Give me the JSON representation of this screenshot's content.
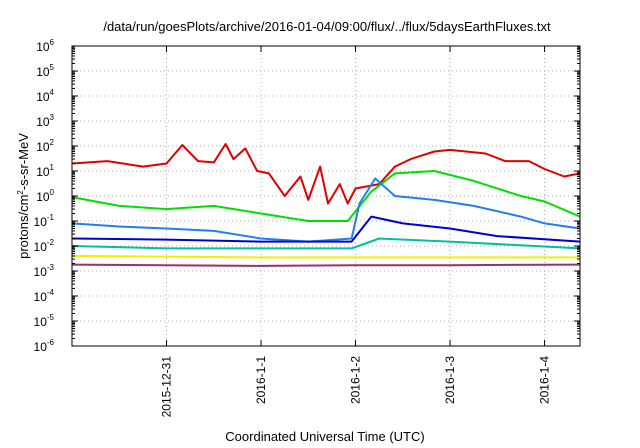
{
  "chart_data": {
    "type": "line",
    "title": "/data/run/goesPlots/archive/2016-01-04/09:00/flux/../flux/5daysEarthFluxes.txt",
    "xlabel": "Coordinated Universal Time (UTC)",
    "ylabel": "protons/cm²-s-sr-MeV",
    "ylabel_parts": {
      "pre": "protons/cm",
      "sup": "2",
      "post": "-s-sr-MeV"
    },
    "y_scale": "log",
    "ylim": [
      1e-06,
      1000000.0
    ],
    "y_ticks": [
      {
        "base": "10",
        "exp": "6",
        "value": 1000000.0
      },
      {
        "base": "10",
        "exp": "5",
        "value": 100000.0
      },
      {
        "base": "10",
        "exp": "4",
        "value": 10000.0
      },
      {
        "base": "10",
        "exp": "3",
        "value": 1000.0
      },
      {
        "base": "10",
        "exp": "2",
        "value": 100.0
      },
      {
        "base": "10",
        "exp": "1",
        "value": 10.0
      },
      {
        "base": "10",
        "exp": "0",
        "value": 1
      },
      {
        "base": "10",
        "exp": "-1",
        "value": 0.1
      },
      {
        "base": "10",
        "exp": "-2",
        "value": 0.01
      },
      {
        "base": "10",
        "exp": "-3",
        "value": 0.001
      },
      {
        "base": "10",
        "exp": "-4",
        "value": 0.0001
      },
      {
        "base": "10",
        "exp": "-5",
        "value": 1e-05
      },
      {
        "base": "10",
        "exp": "-6",
        "value": 1e-06
      }
    ],
    "xlim": [
      "2015-12-30 00:00",
      "2016-01-04 09:00"
    ],
    "x_ticks": [
      {
        "label": "2015-12-31",
        "value": "2015-12-31"
      },
      {
        "label": "2016-1-1",
        "value": "2016-01-01"
      },
      {
        "label": "2016-1-2",
        "value": "2016-01-02"
      },
      {
        "label": "2016-1-3",
        "value": "2016-01-03"
      },
      {
        "label": "2016-1-4",
        "value": "2016-01-04"
      }
    ],
    "grid": true,
    "series": [
      {
        "color": "#e00000",
        "points": [
          [
            "2015-12-30 00:00",
            20
          ],
          [
            "2015-12-30 09:00",
            25
          ],
          [
            "2015-12-30 18:00",
            15
          ],
          [
            "2015-12-31 00:00",
            20
          ],
          [
            "2015-12-31 04:00",
            110
          ],
          [
            "2015-12-31 08:00",
            25
          ],
          [
            "2015-12-31 12:00",
            22
          ],
          [
            "2015-12-31 15:00",
            120
          ],
          [
            "2015-12-31 17:00",
            30
          ],
          [
            "2015-12-31 20:00",
            80
          ],
          [
            "2015-12-31 23:00",
            10
          ],
          [
            "2016-01-01 02:00",
            8
          ],
          [
            "2016-01-01 06:00",
            1
          ],
          [
            "2016-01-01 10:00",
            6
          ],
          [
            "2016-01-01 12:00",
            0.7
          ],
          [
            "2016-01-01 15:00",
            15
          ],
          [
            "2016-01-01 17:00",
            0.5
          ],
          [
            "2016-01-01 20:00",
            3
          ],
          [
            "2016-01-01 22:00",
            0.5
          ],
          [
            "2016-01-02 00:00",
            2
          ],
          [
            "2016-01-02 06:00",
            3
          ],
          [
            "2016-01-02 10:00",
            15
          ],
          [
            "2016-01-02 14:00",
            30
          ],
          [
            "2016-01-02 20:00",
            60
          ],
          [
            "2016-01-03 00:00",
            70
          ],
          [
            "2016-01-03 09:00",
            50
          ],
          [
            "2016-01-03 14:00",
            25
          ],
          [
            "2016-01-03 20:00",
            25
          ],
          [
            "2016-01-04 00:00",
            12
          ],
          [
            "2016-01-04 05:00",
            6
          ],
          [
            "2016-01-04 09:00",
            8
          ]
        ]
      },
      {
        "color": "#00e000",
        "points": [
          [
            "2015-12-30 00:00",
            0.9
          ],
          [
            "2015-12-30 12:00",
            0.4
          ],
          [
            "2015-12-31 00:00",
            0.3
          ],
          [
            "2015-12-31 12:00",
            0.4
          ],
          [
            "2016-01-01 00:00",
            0.2
          ],
          [
            "2016-01-01 12:00",
            0.1
          ],
          [
            "2016-01-01 22:00",
            0.1
          ],
          [
            "2016-01-02 04:00",
            1.5
          ],
          [
            "2016-01-02 10:00",
            8
          ],
          [
            "2016-01-02 20:00",
            10
          ],
          [
            "2016-01-03 06:00",
            4
          ],
          [
            "2016-01-03 18:00",
            1
          ],
          [
            "2016-01-04 00:00",
            0.6
          ],
          [
            "2016-01-04 09:00",
            0.15
          ]
        ]
      },
      {
        "color": "#2080f0",
        "points": [
          [
            "2015-12-30 00:00",
            0.08
          ],
          [
            "2015-12-30 12:00",
            0.06
          ],
          [
            "2015-12-31 00:00",
            0.05
          ],
          [
            "2015-12-31 12:00",
            0.04
          ],
          [
            "2016-01-01 00:00",
            0.02
          ],
          [
            "2016-01-01 12:00",
            0.015
          ],
          [
            "2016-01-01 23:00",
            0.02
          ],
          [
            "2016-01-02 01:00",
            0.5
          ],
          [
            "2016-01-02 05:00",
            5
          ],
          [
            "2016-01-02 10:00",
            1
          ],
          [
            "2016-01-02 20:00",
            0.7
          ],
          [
            "2016-01-03 06:00",
            0.4
          ],
          [
            "2016-01-03 18:00",
            0.15
          ],
          [
            "2016-01-04 00:00",
            0.08
          ],
          [
            "2016-01-04 09:00",
            0.05
          ]
        ]
      },
      {
        "color": "#0000d0",
        "points": [
          [
            "2015-12-30 00:00",
            0.02
          ],
          [
            "2015-12-31 00:00",
            0.018
          ],
          [
            "2016-01-01 00:00",
            0.015
          ],
          [
            "2016-01-01 23:00",
            0.015
          ],
          [
            "2016-01-02 04:00",
            0.15
          ],
          [
            "2016-01-02 12:00",
            0.08
          ],
          [
            "2016-01-03 00:00",
            0.05
          ],
          [
            "2016-01-03 12:00",
            0.025
          ],
          [
            "2016-01-04 09:00",
            0.015
          ]
        ]
      },
      {
        "color": "#00c0a0",
        "points": [
          [
            "2015-12-30 00:00",
            0.01
          ],
          [
            "2015-12-31 00:00",
            0.008
          ],
          [
            "2016-01-01 00:00",
            0.008
          ],
          [
            "2016-01-01 23:00",
            0.008
          ],
          [
            "2016-01-02 06:00",
            0.02
          ],
          [
            "2016-01-03 00:00",
            0.015
          ],
          [
            "2016-01-04 09:00",
            0.008
          ]
        ]
      },
      {
        "color": "#f0f000",
        "points": [
          [
            "2015-12-30 00:00",
            0.004
          ],
          [
            "2016-01-01 00:00",
            0.0035
          ],
          [
            "2016-01-02 00:00",
            0.0035
          ],
          [
            "2016-01-03 00:00",
            0.0035
          ],
          [
            "2016-01-04 09:00",
            0.0035
          ]
        ]
      },
      {
        "color": "#993070",
        "points": [
          [
            "2015-12-30 00:00",
            0.0018
          ],
          [
            "2016-01-01 00:00",
            0.0016
          ],
          [
            "2016-01-02 00:00",
            0.0017
          ],
          [
            "2016-01-03 00:00",
            0.0017
          ],
          [
            "2016-01-04 09:00",
            0.0018
          ]
        ]
      }
    ]
  }
}
